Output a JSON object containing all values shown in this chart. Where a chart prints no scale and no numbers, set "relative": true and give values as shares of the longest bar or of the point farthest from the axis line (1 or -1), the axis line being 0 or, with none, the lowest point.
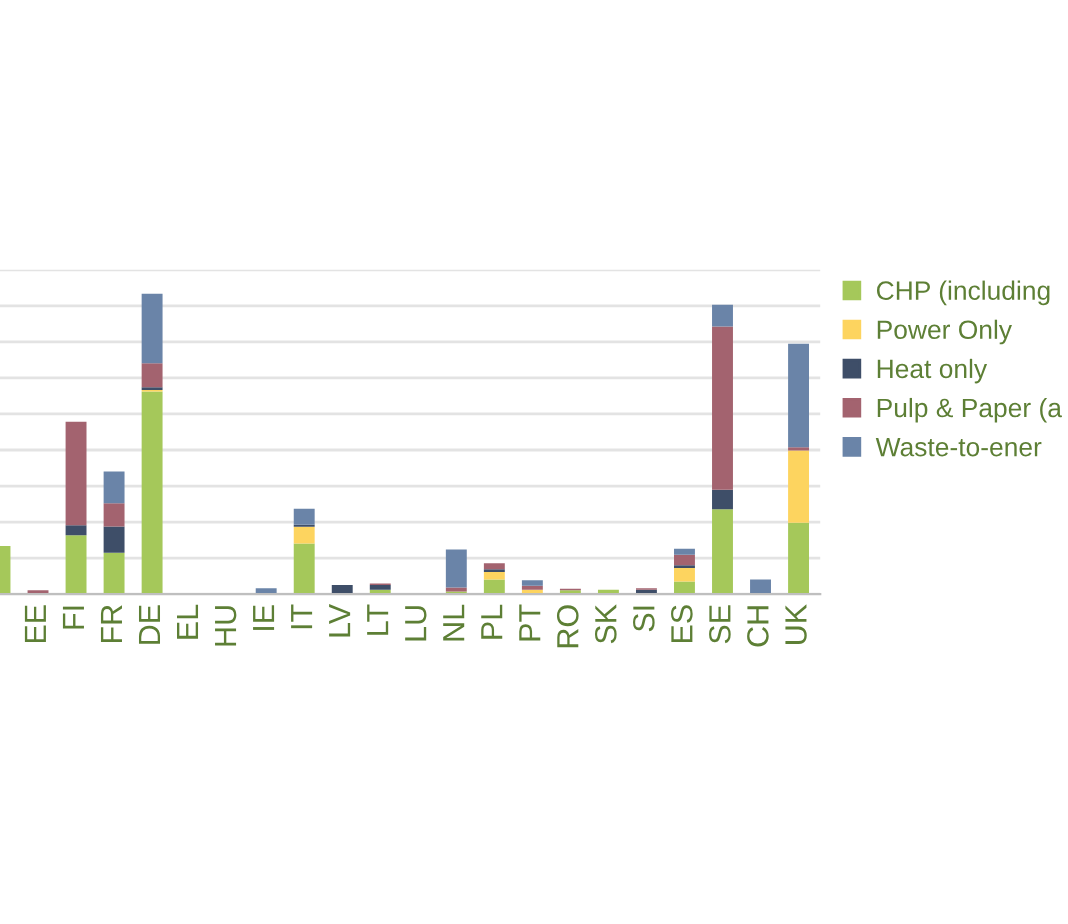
{
  "chart_data": {
    "type": "bar",
    "stacked": true,
    "relative": true,
    "grid": "y",
    "legend": "right",
    "tick_labels": "x",
    "categories": [
      null,
      "EE",
      "FI",
      "FR",
      "DE",
      "EL",
      "HU",
      "IE",
      "IT",
      "LV",
      "LT",
      "LU",
      "NL",
      "PL",
      "PT",
      "RO",
      "SK",
      "SI",
      "ES",
      "SE",
      "CH",
      "UK"
    ],
    "series": [
      {
        "name": "CHP (including",
        "color": "#a5c85a",
        "values": [
          0.16,
          null,
          0.196,
          0.138,
          0.675,
          null,
          null,
          null,
          0.169,
          null,
          0.015,
          null,
          0.009,
          0.049,
          null,
          0.013,
          0.015,
          null,
          0.042,
          0.283,
          null,
          0.238
        ]
      },
      {
        "name": "Power Only",
        "color": "#fdd45f",
        "values": [
          null,
          null,
          null,
          null,
          0.005,
          null,
          null,
          null,
          0.055,
          null,
          null,
          null,
          null,
          0.025,
          0.015,
          null,
          null,
          null,
          0.045,
          null,
          null,
          0.24
        ]
      },
      {
        "name": "Heat only",
        "color": "#3e4e68",
        "values": [
          null,
          null,
          0.033,
          0.087,
          0.009,
          null,
          null,
          null,
          0.007,
          0.03,
          0.015,
          null,
          null,
          0.009,
          null,
          null,
          null,
          0.015,
          0.009,
          0.065,
          null,
          null
        ]
      },
      {
        "name": "Pulp & Paper (a",
        "color": "#a3636f",
        "values": [
          null,
          0.013,
          0.345,
          0.078,
          0.08,
          null,
          null,
          null,
          null,
          null,
          0.005,
          null,
          0.013,
          0.02,
          0.013,
          0.005,
          null,
          0.005,
          0.035,
          0.543,
          null,
          0.011
        ]
      },
      {
        "name": "Waste-to-ener",
        "color": "#6a84a8",
        "values": [
          null,
          null,
          null,
          0.105,
          0.231,
          null,
          null,
          0.02,
          0.053,
          null,
          null,
          null,
          0.127,
          null,
          0.018,
          null,
          null,
          null,
          0.02,
          0.073,
          0.049,
          0.345
        ]
      }
    ]
  }
}
